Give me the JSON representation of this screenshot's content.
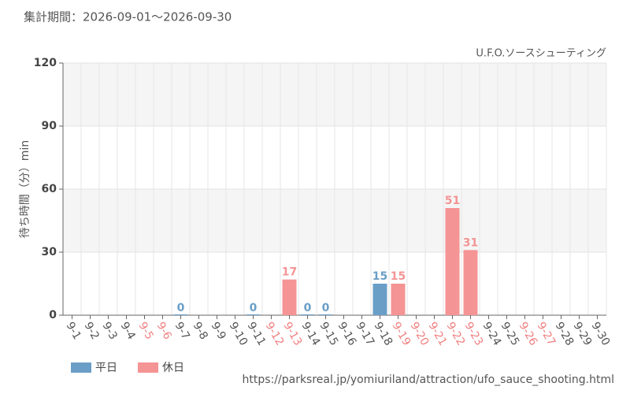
{
  "header": "集計期間：2026-09-01～2026-09-30",
  "footer_url": "https://parksreal.jp/yomiuriland/attraction/ufo_sauce_shooting.html",
  "chart_data": {
    "type": "bar",
    "title": "U.F.O.ソースシューティング",
    "y_label": "待ち時間（分）min",
    "categories": [
      "9-1",
      "9-2",
      "9-3",
      "9-4",
      "9-5",
      "9-6",
      "9-7",
      "9-8",
      "9-9",
      "9-10",
      "9-11",
      "9-12",
      "9-13",
      "9-14",
      "9-15",
      "9-16",
      "9-17",
      "9-18",
      "9-19",
      "9-20",
      "9-21",
      "9-22",
      "9-23",
      "9-24",
      "9-25",
      "9-26",
      "9-27",
      "9-28",
      "9-29",
      "9-30"
    ],
    "category_colors": [
      "#555",
      "#555",
      "#555",
      "#555",
      "#f08080",
      "#f08080",
      "#555",
      "#555",
      "#555",
      "#555",
      "#555",
      "#f08080",
      "#f08080",
      "#555",
      "#555",
      "#555",
      "#555",
      "#555",
      "#f08080",
      "#f08080",
      "#f08080",
      "#f08080",
      "#f08080",
      "#555",
      "#555",
      "#f08080",
      "#f08080",
      "#555",
      "#555",
      "#555"
    ],
    "series": [
      {
        "name": "平日",
        "color": "#6a9ec7",
        "values": [
          null,
          null,
          null,
          null,
          null,
          null,
          0,
          null,
          null,
          null,
          0,
          null,
          null,
          0,
          0,
          null,
          null,
          15,
          null,
          null,
          null,
          null,
          null,
          null,
          null,
          null,
          null,
          null,
          null,
          null
        ]
      },
      {
        "name": "休日",
        "color": "#f59494",
        "values": [
          null,
          null,
          null,
          null,
          null,
          null,
          null,
          null,
          null,
          null,
          null,
          null,
          17,
          null,
          null,
          null,
          null,
          null,
          15,
          null,
          null,
          51,
          31,
          null,
          null,
          null,
          null,
          null,
          null,
          null
        ]
      }
    ],
    "ylim": [
      0,
      120
    ],
    "yticks": [
      0,
      30,
      60,
      90,
      120
    ],
    "grid": true
  }
}
